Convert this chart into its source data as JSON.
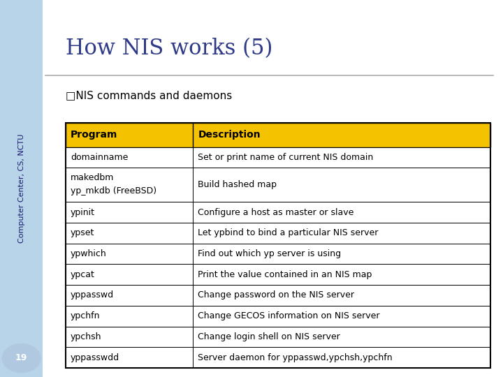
{
  "title": "How NIS works (5)",
  "subtitle": "□NIS commands and daemons",
  "sidebar_text": "Computer Center, CS, NCTU",
  "sidebar_bg": "#b8d4e8",
  "page_bg": "#ffffff",
  "title_color": "#2e3a87",
  "header_bg": "#f5c200",
  "header_text_color": "#000000",
  "table_border_color": "#000000",
  "page_number": "19",
  "columns": [
    "Program",
    "Description"
  ],
  "rows": [
    [
      "domainname",
      "Set or print name of current NIS domain"
    ],
    [
      "makedbm\nyp_mkdb (FreeBSD)",
      "Build hashed map"
    ],
    [
      "ypinit",
      "Configure a host as master or slave"
    ],
    [
      "ypset",
      "Let ypbind to bind a particular NIS server"
    ],
    [
      "ypwhich",
      "Find out which yp server is using"
    ],
    [
      "ypcat",
      "Print the value contained in an NIS map"
    ],
    [
      "yppasswd",
      "Change password on the NIS server"
    ],
    [
      "ypchfn",
      "Change GECOS information on NIS server"
    ],
    [
      "ypchsh",
      "Change login shell on NIS server"
    ],
    [
      "yppasswdd",
      "Server daemon for yppasswd,ypchsh,ypchfn"
    ]
  ]
}
